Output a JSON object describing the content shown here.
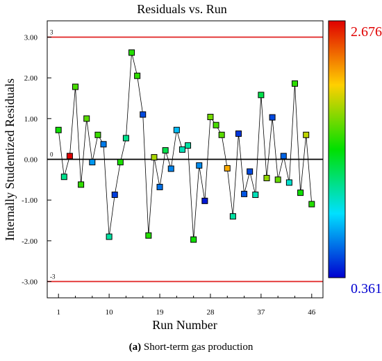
{
  "chart_data": {
    "type": "scatter",
    "title": "Residuals vs. Run",
    "xlabel": "Run Number",
    "ylabel": "Internally Studentized Residuals",
    "xlim": [
      -1,
      48
    ],
    "ylim": [
      -3.4,
      3.4
    ],
    "x_ticks": [
      1,
      10,
      19,
      28,
      37,
      46
    ],
    "x_ticks_unlabeled": [
      4,
      7,
      13,
      16,
      22,
      25,
      31,
      34,
      40,
      43
    ],
    "y_ticks": [
      3.0,
      2.0,
      1.0,
      0.0,
      -1.0,
      -2.0,
      -3.0
    ],
    "y_tick_labels": [
      "3.00",
      "2.00",
      "1.00",
      "0.00",
      "-1.00",
      "-2.00",
      "-3.00"
    ],
    "reference_lines": [
      {
        "y": 3,
        "label": "3",
        "color": "#e02020"
      },
      {
        "y": 0,
        "label": "0",
        "color": "#000000"
      },
      {
        "y": -3,
        "label": "-3",
        "color": "#e02020"
      }
    ],
    "colorbar": {
      "max_label": "2.676",
      "min_label": "0.361",
      "max": 2.676,
      "min": 0.361,
      "max_color": "#e00000",
      "min_color": "#0000d0"
    },
    "series": [
      {
        "points": [
          {
            "x": 1,
            "y": 0.72,
            "c": 1.55
          },
          {
            "x": 2,
            "y": -0.43,
            "c": 1.2
          },
          {
            "x": 3,
            "y": 0.08,
            "c": 2.676
          },
          {
            "x": 4,
            "y": 1.78,
            "c": 1.68
          },
          {
            "x": 5,
            "y": -0.62,
            "c": 1.63
          },
          {
            "x": 6,
            "y": 1.0,
            "c": 1.72
          },
          {
            "x": 7,
            "y": -0.07,
            "c": 0.75
          },
          {
            "x": 8,
            "y": 0.6,
            "c": 1.65
          },
          {
            "x": 9,
            "y": 0.37,
            "c": 0.68
          },
          {
            "x": 10,
            "y": -1.9,
            "c": 1.15
          },
          {
            "x": 11,
            "y": -0.87,
            "c": 0.52
          },
          {
            "x": 12,
            "y": -0.07,
            "c": 1.58
          },
          {
            "x": 13,
            "y": 0.52,
            "c": 1.2
          },
          {
            "x": 14,
            "y": 2.62,
            "c": 1.6
          },
          {
            "x": 15,
            "y": 2.05,
            "c": 1.63
          },
          {
            "x": 16,
            "y": 1.1,
            "c": 0.55
          },
          {
            "x": 17,
            "y": -1.87,
            "c": 1.6
          },
          {
            "x": 18,
            "y": 0.05,
            "c": 1.9
          },
          {
            "x": 19,
            "y": -0.68,
            "c": 0.65
          },
          {
            "x": 20,
            "y": 0.22,
            "c": 1.35
          },
          {
            "x": 21,
            "y": -0.23,
            "c": 0.7
          },
          {
            "x": 22,
            "y": 0.72,
            "c": 0.85
          },
          {
            "x": 23,
            "y": 0.24,
            "c": 1.1
          },
          {
            "x": 24,
            "y": 0.34,
            "c": 1.15
          },
          {
            "x": 25,
            "y": -1.97,
            "c": 1.55
          },
          {
            "x": 26,
            "y": -0.15,
            "c": 0.72
          },
          {
            "x": 27,
            "y": -1.02,
            "c": 0.42
          },
          {
            "x": 28,
            "y": 1.04,
            "c": 1.78
          },
          {
            "x": 29,
            "y": 0.84,
            "c": 1.68
          },
          {
            "x": 30,
            "y": 0.6,
            "c": 1.72
          },
          {
            "x": 31,
            "y": -0.22,
            "c": 2.2
          },
          {
            "x": 32,
            "y": -1.4,
            "c": 1.15
          },
          {
            "x": 33,
            "y": 0.63,
            "c": 0.5
          },
          {
            "x": 34,
            "y": -0.85,
            "c": 0.58
          },
          {
            "x": 35,
            "y": -0.3,
            "c": 0.55
          },
          {
            "x": 36,
            "y": -0.87,
            "c": 1.1
          },
          {
            "x": 37,
            "y": 1.58,
            "c": 1.35
          },
          {
            "x": 38,
            "y": -0.46,
            "c": 1.85
          },
          {
            "x": 39,
            "y": 1.03,
            "c": 0.55
          },
          {
            "x": 40,
            "y": -0.5,
            "c": 1.75
          },
          {
            "x": 41,
            "y": 0.08,
            "c": 0.62
          },
          {
            "x": 42,
            "y": -0.57,
            "c": 1.05
          },
          {
            "x": 43,
            "y": 1.86,
            "c": 1.62
          },
          {
            "x": 44,
            "y": -0.82,
            "c": 1.55
          },
          {
            "x": 45,
            "y": 0.6,
            "c": 1.95
          },
          {
            "x": 46,
            "y": -1.1,
            "c": 1.6
          }
        ]
      }
    ]
  },
  "caption": {
    "label": "(a)",
    "text": " Short-term gas production"
  }
}
